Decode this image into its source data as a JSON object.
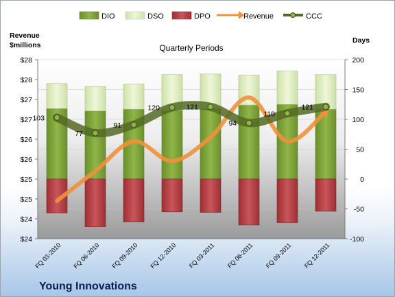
{
  "company": "Young Innovations",
  "legend": {
    "dio": "DIO",
    "dso": "DSO",
    "dpo": "DPO",
    "revenue": "Revenue",
    "ccc": "CCC"
  },
  "colors": {
    "dio": "#7ea33a",
    "dso": "#dfeec0",
    "dpo": "#b53a3f",
    "revenue": "#f0913a",
    "ccc": "#556a25"
  },
  "chart_data": {
    "type": "bar",
    "title": "Quarterly Periods",
    "ylabel_left": "Revenue\n$millions",
    "ylabel_right": "Days",
    "categories": [
      "FQ 03-2010",
      "FQ 06-2010",
      "FQ 09-2010",
      "FQ 12-2010",
      "FQ 03-2011",
      "FQ 06-2011",
      "FQ 09-2011",
      "FQ 12-2011"
    ],
    "left_tick_labels": [
      "$28",
      "$28",
      "$27",
      "$27",
      "$26",
      "$26",
      "$25",
      "$25",
      "$24",
      "$24"
    ],
    "right_axis": {
      "min": -100,
      "max": 200,
      "ticks": [
        200,
        150,
        100,
        50,
        0,
        -50,
        -100
      ]
    },
    "left_axis": {
      "min": 24,
      "max": 28.5
    },
    "series": [
      {
        "name": "DIO",
        "type": "bar",
        "values": [
          118,
          114,
          117,
          115,
          118,
          124,
          125,
          117
        ]
      },
      {
        "name": "DSO",
        "type": "bar",
        "values": [
          42,
          41,
          42,
          60,
          58,
          50,
          56,
          58
        ]
      },
      {
        "name": "DPO",
        "type": "bar",
        "values": [
          -57,
          -80,
          -72,
          -55,
          -56,
          -77,
          -73,
          -54
        ]
      },
      {
        "name": "Revenue",
        "type": "line",
        "values": [
          24.95,
          25.7,
          26.45,
          25.95,
          26.55,
          27.55,
          26.45,
          27.2
        ]
      },
      {
        "name": "CCC",
        "type": "line",
        "values": [
          103,
          77,
          91,
          120,
          121,
          94,
          110,
          121
        ]
      }
    ],
    "data_labels": [
      "103",
      "77",
      "91",
      "120",
      "121",
      "94",
      "110",
      "121"
    ]
  }
}
